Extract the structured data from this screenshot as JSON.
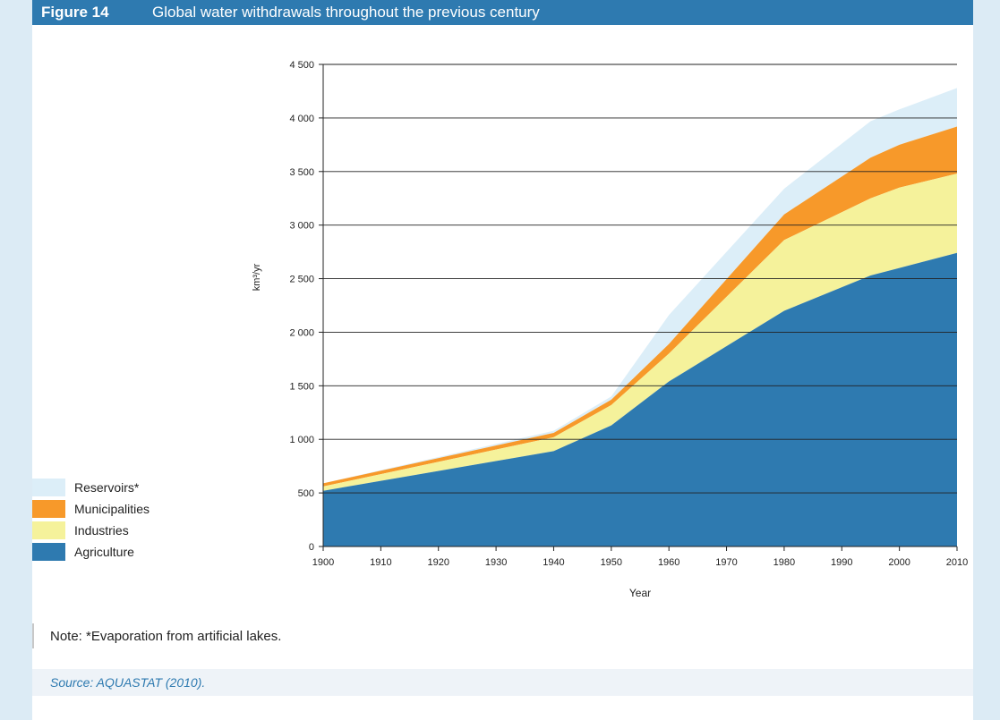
{
  "header": {
    "figure_label": "Figure 14",
    "title": "Global water withdrawals throughout the previous century"
  },
  "note": "Note: *Evaporation from artificial lakes.",
  "source": "Source: AQUASTAT (2010).",
  "colors": {
    "header_bg": "#2e7ab0",
    "agriculture": "#2e7ab0",
    "industries": "#f5f29b",
    "municipalities": "#f7992a",
    "reservoirs": "#dceef8"
  },
  "chart_data": {
    "type": "area",
    "stacked": true,
    "xlabel": "Year",
    "ylabel": "km³/yr",
    "xlim": [
      1900,
      2010
    ],
    "ylim": [
      0,
      4500
    ],
    "x_ticks": [
      "1900",
      "1910",
      "1920",
      "1930",
      "1940",
      "1950",
      "1960",
      "1970",
      "1980",
      "1990",
      "2000",
      "2010"
    ],
    "y_ticks": [
      "0",
      "500",
      "1 000",
      "1 500",
      "2 000",
      "2 500",
      "3 000",
      "3 500",
      "4 000",
      "4 500"
    ],
    "grid": "horizontal",
    "legend_position": "left",
    "x": [
      1900,
      1940,
      1950,
      1960,
      1980,
      1995,
      2000,
      2010
    ],
    "series": [
      {
        "name": "Agriculture",
        "values": [
          520,
          890,
          1130,
          1540,
          2200,
          2530,
          2600,
          2740
        ]
      },
      {
        "name": "Industries",
        "values": [
          40,
          130,
          190,
          260,
          660,
          720,
          750,
          740
        ]
      },
      {
        "name": "Municipalities",
        "values": [
          30,
          40,
          50,
          90,
          240,
          380,
          400,
          440
        ]
      },
      {
        "name": "Reservoirs*",
        "values": [
          0,
          20,
          30,
          270,
          240,
          340,
          330,
          360
        ]
      }
    ]
  }
}
